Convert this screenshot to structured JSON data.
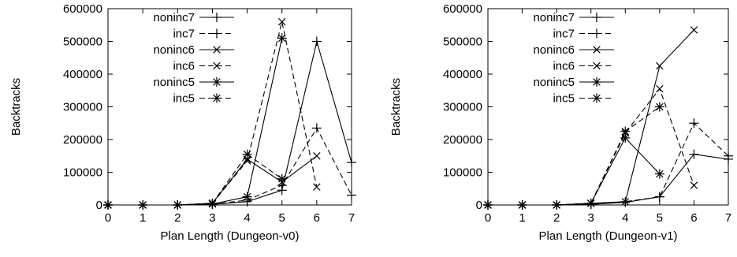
{
  "chart_data": [
    {
      "type": "line",
      "title": "",
      "xlabel": "Plan Length (Dungeon-v0)",
      "ylabel": "Backtracks",
      "xlim": [
        0,
        7
      ],
      "ylim": [
        0,
        600000
      ],
      "xticks": [
        "0",
        "1",
        "2",
        "3",
        "4",
        "5",
        "6",
        "7"
      ],
      "yticks": [
        "0",
        "100000",
        "200000",
        "300000",
        "400000",
        "500000",
        "600000"
      ],
      "grid": false,
      "legend": "top-left",
      "x": [
        0,
        1,
        2,
        3,
        4,
        5,
        6,
        7
      ],
      "series": [
        {
          "name": "noninc7",
          "marker": "plus",
          "dash": "solid",
          "values": [
            0,
            0,
            0,
            2000,
            10000,
            45000,
            500000,
            130000
          ]
        },
        {
          "name": "inc7",
          "marker": "plus",
          "dash": "dashed",
          "values": [
            0,
            0,
            0,
            2000,
            15000,
            60000,
            235000,
            30000
          ]
        },
        {
          "name": "noninc6",
          "marker": "x",
          "dash": "solid",
          "values": [
            0,
            0,
            0,
            5000,
            140000,
            70000,
            150000,
            null
          ]
        },
        {
          "name": "inc6",
          "marker": "x",
          "dash": "dashed",
          "values": [
            0,
            0,
            0,
            5000,
            135000,
            560000,
            55000,
            null
          ]
        },
        {
          "name": "noninc5",
          "marker": "star",
          "dash": "solid",
          "values": [
            0,
            0,
            0,
            3000,
            25000,
            510000,
            null,
            null
          ]
        },
        {
          "name": "inc5",
          "marker": "star",
          "dash": "dashed",
          "values": [
            0,
            0,
            0,
            5000,
            155000,
            80000,
            null,
            null
          ]
        }
      ]
    },
    {
      "type": "line",
      "title": "",
      "xlabel": "Plan Length (Dungeon-v1)",
      "ylabel": "Backtracks",
      "xlim": [
        0,
        7
      ],
      "ylim": [
        0,
        600000
      ],
      "xticks": [
        "0",
        "1",
        "2",
        "3",
        "4",
        "5",
        "6",
        "7"
      ],
      "yticks": [
        "0",
        "100000",
        "200000",
        "300000",
        "400000",
        "500000",
        "600000"
      ],
      "grid": false,
      "legend": "top-left",
      "x": [
        0,
        1,
        2,
        3,
        4,
        5,
        6,
        7
      ],
      "series": [
        {
          "name": "noninc7",
          "marker": "plus",
          "dash": "solid",
          "values": [
            0,
            0,
            0,
            2000,
            8000,
            25000,
            155000,
            140000
          ]
        },
        {
          "name": "inc7",
          "marker": "plus",
          "dash": "dashed",
          "values": [
            0,
            0,
            0,
            2000,
            10000,
            25000,
            250000,
            150000
          ]
        },
        {
          "name": "noninc6",
          "marker": "x",
          "dash": "solid",
          "values": [
            0,
            0,
            0,
            5000,
            10000,
            425000,
            535000,
            null
          ]
        },
        {
          "name": "inc6",
          "marker": "x",
          "dash": "dashed",
          "values": [
            0,
            0,
            0,
            5000,
            220000,
            355000,
            60000,
            null
          ]
        },
        {
          "name": "noninc5",
          "marker": "star",
          "dash": "solid",
          "values": [
            0,
            0,
            0,
            5000,
            205000,
            95000,
            null,
            null
          ]
        },
        {
          "name": "inc5",
          "marker": "star",
          "dash": "dashed",
          "values": [
            0,
            0,
            0,
            5000,
            225000,
            300000,
            null,
            null
          ]
        }
      ]
    }
  ]
}
